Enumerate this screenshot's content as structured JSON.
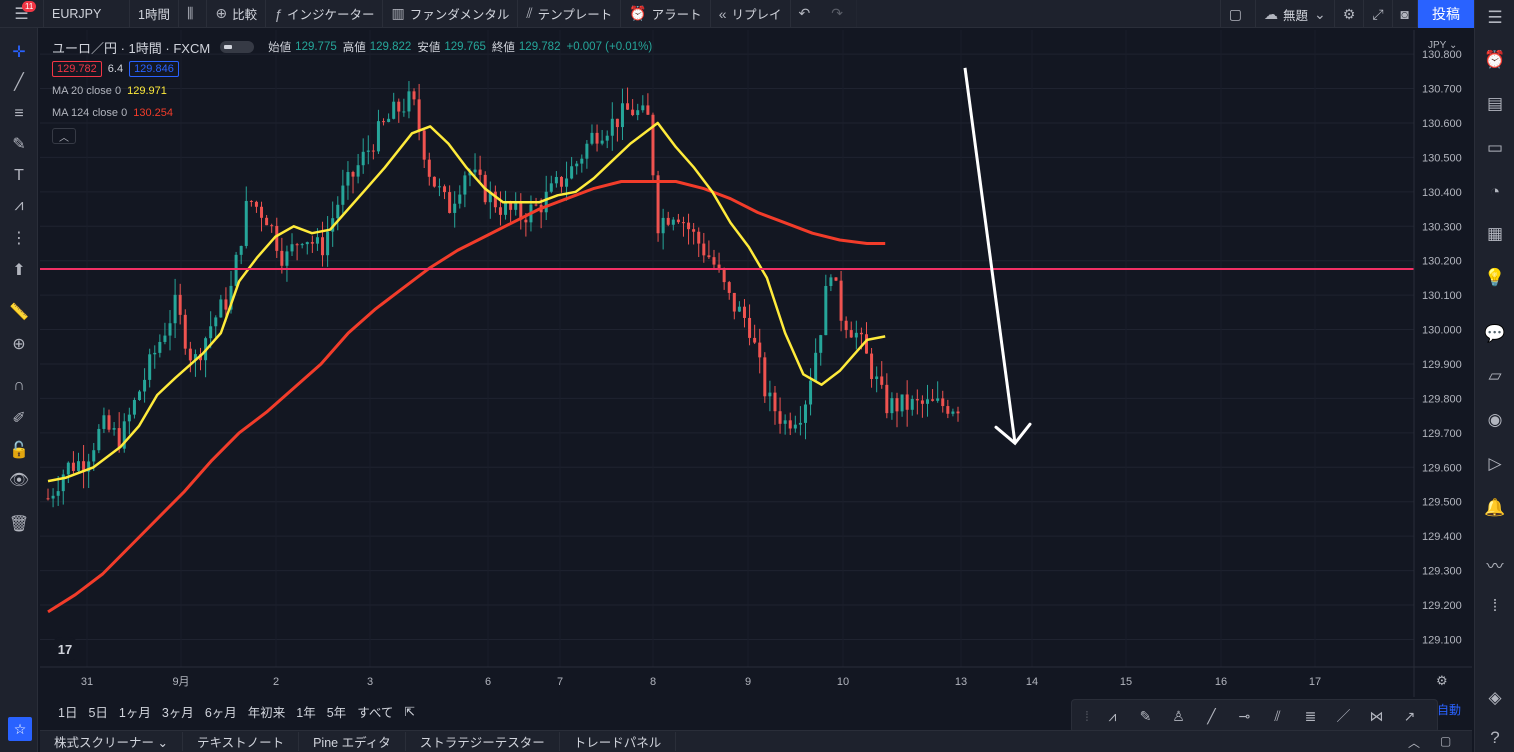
{
  "toolbar": {
    "notif_count": "11",
    "symbol": "EURJPY",
    "interval": "1時間",
    "compare": "比較",
    "indicators": "インジケーター",
    "fundamentals": "ファンダメンタル",
    "templates": "テンプレート",
    "alert": "アラート",
    "replay": "リプレイ",
    "layout_name": "無題",
    "post": "投稿"
  },
  "legend": {
    "title": "ユーロ／円 · 1時間 · FXCM",
    "open_label": "始値",
    "open": "129.775",
    "high_label": "高値",
    "high": "129.822",
    "low_label": "安値",
    "low": "129.765",
    "close_label": "終値",
    "close": "129.782",
    "change": "+0.007 (+0.01%)",
    "bid": "129.782",
    "spread": "6.4",
    "ask": "129.846",
    "ma1_label": "MA 20 close 0",
    "ma1_value": "129.971",
    "ma2_label": "MA 124 close 0",
    "ma2_value": "130.254"
  },
  "colors": {
    "bull": "#26a69a",
    "bear": "#ef5350",
    "ma20": "#ffeb3b",
    "ma124": "#f23c2a",
    "hline": "#f23065",
    "arrow": "#ffffff",
    "accent": "#2962ff"
  },
  "price_axis": {
    "currency": "JPY"
  },
  "chart_data": {
    "type": "candlestick",
    "symbol": "EURJPY",
    "timeframe": "1h",
    "ylim": [
      129.02,
      130.87
    ],
    "y_ticks": [
      129.1,
      129.2,
      129.3,
      129.4,
      129.5,
      129.6,
      129.7,
      129.8,
      129.9,
      130.0,
      130.1,
      130.2,
      130.3,
      130.4,
      130.5,
      130.6,
      130.7,
      130.8
    ],
    "x_labels": [
      "31",
      "9月",
      "2",
      "3",
      "6",
      "7",
      "8",
      "9",
      "10",
      "13",
      "14",
      "15",
      "16",
      "17"
    ],
    "ma20_path": [
      [
        0,
        129.56
      ],
      [
        0.02,
        129.57
      ],
      [
        0.05,
        129.6
      ],
      [
        0.08,
        129.66
      ],
      [
        0.1,
        129.72
      ],
      [
        0.12,
        129.81
      ],
      [
        0.14,
        129.86
      ],
      [
        0.17,
        129.93
      ],
      [
        0.19,
        129.99
      ],
      [
        0.21,
        130.14
      ],
      [
        0.23,
        130.21
      ],
      [
        0.25,
        130.27
      ],
      [
        0.27,
        130.3
      ],
      [
        0.29,
        130.28
      ],
      [
        0.31,
        130.29
      ],
      [
        0.33,
        130.35
      ],
      [
        0.35,
        130.41
      ],
      [
        0.37,
        130.47
      ],
      [
        0.4,
        130.57
      ],
      [
        0.42,
        130.59
      ],
      [
        0.44,
        130.54
      ],
      [
        0.46,
        130.47
      ],
      [
        0.48,
        130.41
      ],
      [
        0.5,
        130.37
      ],
      [
        0.52,
        130.37
      ],
      [
        0.54,
        130.37
      ],
      [
        0.56,
        130.39
      ],
      [
        0.58,
        130.4
      ],
      [
        0.6,
        130.44
      ],
      [
        0.62,
        130.49
      ],
      [
        0.64,
        130.54
      ],
      [
        0.66,
        130.58
      ],
      [
        0.67,
        130.6
      ],
      [
        0.69,
        130.53
      ],
      [
        0.71,
        130.47
      ],
      [
        0.73,
        130.4
      ],
      [
        0.75,
        130.31
      ],
      [
        0.77,
        130.24
      ],
      [
        0.79,
        130.15
      ],
      [
        0.81,
        129.99
      ],
      [
        0.83,
        129.87
      ],
      [
        0.85,
        129.84
      ],
      [
        0.87,
        129.88
      ],
      [
        0.89,
        129.94
      ],
      [
        0.9,
        129.97
      ],
      [
        0.92,
        129.98
      ]
    ],
    "ma124_path": [
      [
        0,
        129.18
      ],
      [
        0.03,
        129.23
      ],
      [
        0.06,
        129.29
      ],
      [
        0.09,
        129.37
      ],
      [
        0.12,
        129.45
      ],
      [
        0.15,
        129.53
      ],
      [
        0.18,
        129.62
      ],
      [
        0.21,
        129.7
      ],
      [
        0.24,
        129.76
      ],
      [
        0.27,
        129.83
      ],
      [
        0.3,
        129.9
      ],
      [
        0.33,
        129.99
      ],
      [
        0.36,
        130.06
      ],
      [
        0.39,
        130.12
      ],
      [
        0.42,
        130.18
      ],
      [
        0.45,
        130.23
      ],
      [
        0.48,
        130.27
      ],
      [
        0.51,
        130.31
      ],
      [
        0.54,
        130.35
      ],
      [
        0.57,
        130.38
      ],
      [
        0.6,
        130.41
      ],
      [
        0.63,
        130.43
      ],
      [
        0.66,
        130.43
      ],
      [
        0.69,
        130.43
      ],
      [
        0.72,
        130.41
      ],
      [
        0.75,
        130.38
      ],
      [
        0.78,
        130.34
      ],
      [
        0.81,
        130.31
      ],
      [
        0.84,
        130.28
      ],
      [
        0.87,
        130.26
      ],
      [
        0.9,
        130.25
      ],
      [
        0.92,
        130.25
      ]
    ],
    "horizontal_line": 130.176,
    "last_price": 129.782,
    "forecast_arrow": {
      "from_price": 130.76,
      "to_price": 129.67,
      "direction": "down"
    },
    "candle_path": [
      [
        0,
        129.51
      ],
      [
        0.02,
        129.6
      ],
      [
        0.04,
        129.62
      ],
      [
        0.06,
        129.72
      ],
      [
        0.08,
        129.68
      ],
      [
        0.1,
        129.82
      ],
      [
        0.12,
        129.95
      ],
      [
        0.14,
        130.07
      ],
      [
        0.16,
        129.9
      ],
      [
        0.18,
        130.02
      ],
      [
        0.2,
        130.1
      ],
      [
        0.22,
        130.38
      ],
      [
        0.24,
        130.33
      ],
      [
        0.26,
        130.2
      ],
      [
        0.28,
        130.28
      ],
      [
        0.3,
        130.23
      ],
      [
        0.32,
        130.38
      ],
      [
        0.34,
        130.47
      ],
      [
        0.36,
        130.56
      ],
      [
        0.38,
        130.63
      ],
      [
        0.4,
        130.67
      ],
      [
        0.42,
        130.45
      ],
      [
        0.44,
        130.35
      ],
      [
        0.46,
        130.47
      ],
      [
        0.48,
        130.4
      ],
      [
        0.5,
        130.35
      ],
      [
        0.52,
        130.33
      ],
      [
        0.54,
        130.36
      ],
      [
        0.56,
        130.42
      ],
      [
        0.58,
        130.48
      ],
      [
        0.6,
        130.57
      ],
      [
        0.62,
        130.6
      ],
      [
        0.64,
        130.64
      ],
      [
        0.66,
        130.61
      ],
      [
        0.67,
        130.31
      ],
      [
        0.69,
        130.35
      ],
      [
        0.71,
        130.27
      ],
      [
        0.73,
        130.2
      ],
      [
        0.75,
        130.08
      ],
      [
        0.77,
        130.02
      ],
      [
        0.79,
        129.8
      ],
      [
        0.81,
        129.73
      ],
      [
        0.83,
        129.77
      ],
      [
        0.85,
        130.02
      ],
      [
        0.86,
        130.19
      ],
      [
        0.87,
        130.05
      ],
      [
        0.89,
        129.98
      ],
      [
        0.91,
        129.85
      ],
      [
        0.92,
        129.78
      ]
    ]
  },
  "range": [
    "1日",
    "5日",
    "1ヶ月",
    "3ヶ月",
    "6ヶ月",
    "年初来",
    "1年",
    "5年",
    "すべて"
  ],
  "auto_label": "自動",
  "bottom_tabs": [
    "株式スクリーナー",
    "テキストノート",
    "Pine エディタ",
    "ストラテジーテスター",
    "トレードパネル"
  ]
}
